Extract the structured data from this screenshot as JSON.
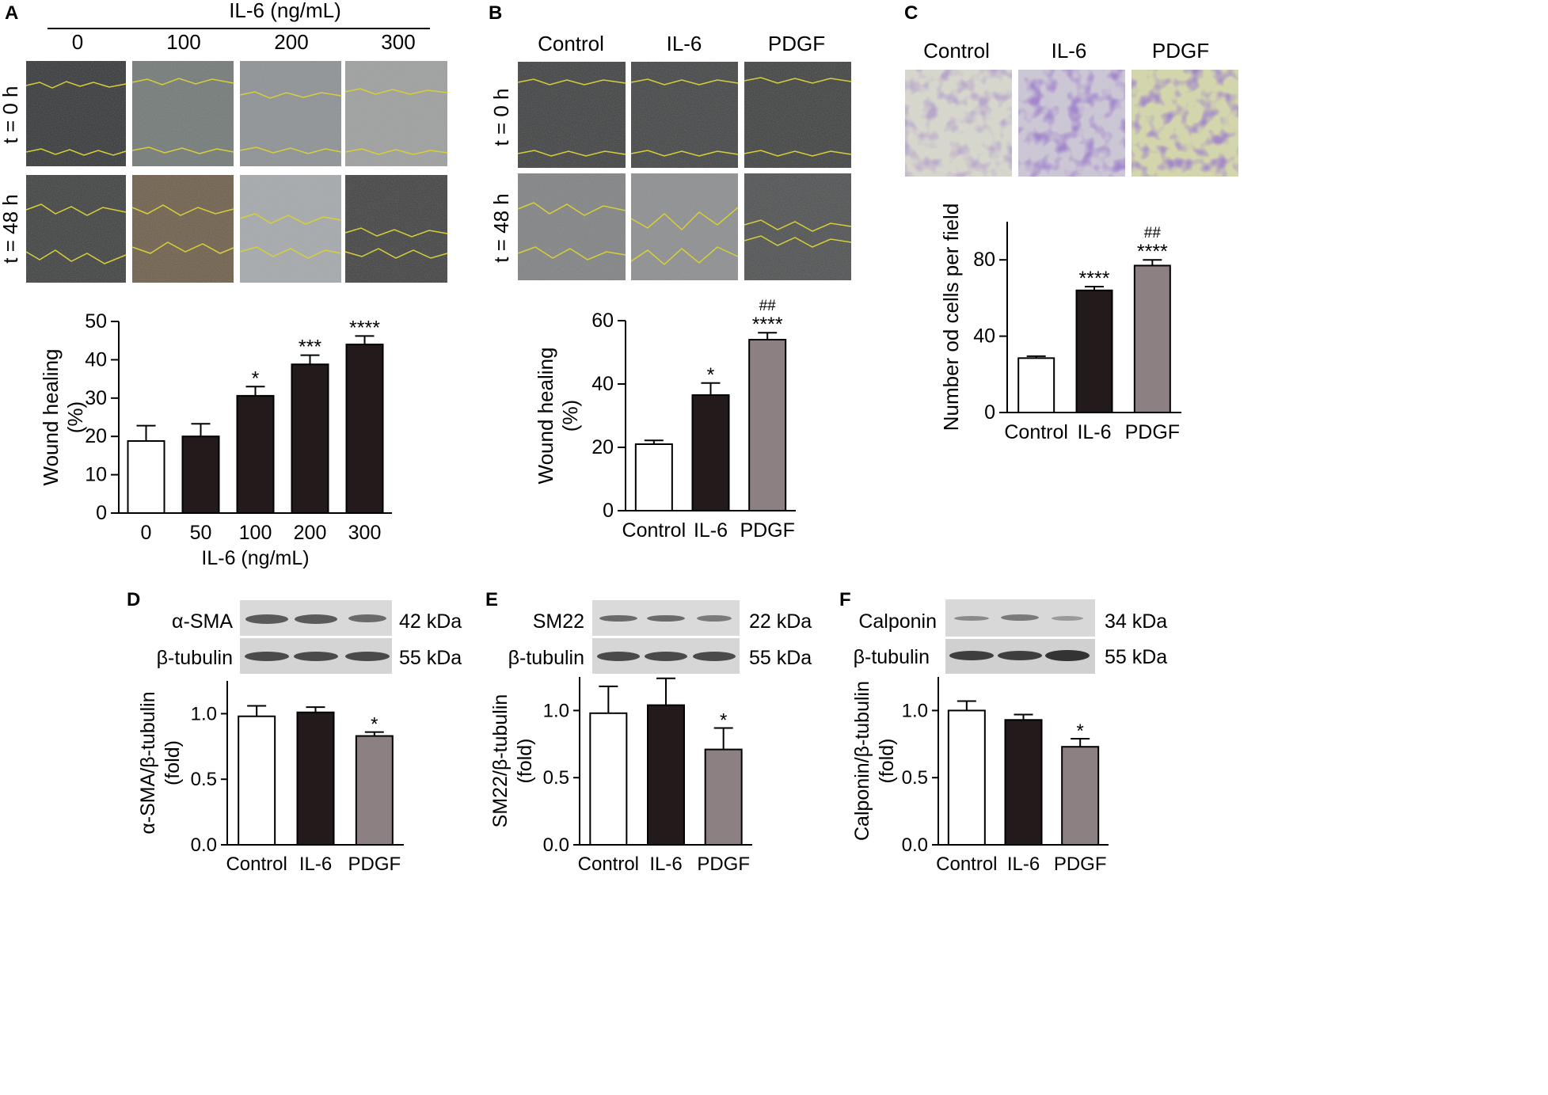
{
  "panels": {
    "A": {
      "letter": "A",
      "header": "IL-6 (ng/mL)",
      "columns": [
        "0",
        "100",
        "200",
        "300"
      ],
      "rows": [
        "t = 0 h",
        "t = 48 h"
      ]
    },
    "B": {
      "letter": "B",
      "columns": [
        "Control",
        "IL-6",
        "PDGF"
      ],
      "rows": [
        "t = 0 h",
        "t = 48 h"
      ]
    },
    "C": {
      "letter": "C",
      "columns": [
        "Control",
        "IL-6",
        "PDGF"
      ]
    },
    "D": {
      "letter": "D",
      "blot_labels": [
        "α-SMA",
        "β-tubulin"
      ],
      "kda": [
        "42 kDa",
        "55 kDa"
      ]
    },
    "E": {
      "letter": "E",
      "blot_labels": [
        "SM22",
        "β-tubulin"
      ],
      "kda": [
        "22 kDa",
        "55 kDa"
      ]
    },
    "F": {
      "letter": "F",
      "blot_labels": [
        "Calponin",
        "β-tubulin"
      ],
      "kda": [
        "34 kDa",
        "55 kDa"
      ]
    }
  },
  "colors": {
    "white": "#ffffff",
    "black": "#231a1c",
    "gray": "#8c8083",
    "yellow_line": "#d6cf3a",
    "violet": "#5a3a9a"
  },
  "chart_data": [
    {
      "id": "A",
      "type": "bar",
      "categories": [
        "0",
        "50",
        "100",
        "200",
        "300"
      ],
      "values": [
        18.8,
        20.0,
        30.6,
        38.8,
        44.0
      ],
      "errors": [
        4.0,
        3.3,
        2.4,
        2.4,
        2.2
      ],
      "fills": [
        "white",
        "black",
        "black",
        "black",
        "black"
      ],
      "annotations": [
        "",
        "",
        "*",
        "***",
        "****"
      ],
      "ylabel": [
        "Wound healing",
        "(%)"
      ],
      "xlabel": "IL-6 (ng/mL)",
      "ylim": [
        0,
        50
      ],
      "yticks": [
        "0",
        "10",
        "20",
        "30",
        "40",
        "50"
      ]
    },
    {
      "id": "B",
      "type": "bar",
      "categories": [
        "Control",
        "IL-6",
        "PDGF"
      ],
      "values": [
        21.0,
        36.5,
        54.0
      ],
      "errors": [
        1.2,
        3.8,
        2.2
      ],
      "fills": [
        "white",
        "black",
        "gray"
      ],
      "annotations": [
        "",
        "*",
        "****"
      ],
      "annotations2": [
        "",
        "",
        "##"
      ],
      "ylabel": [
        "Wound healing",
        "(%)"
      ],
      "xlabel": "",
      "ylim": [
        0,
        60
      ],
      "yticks": [
        "0",
        "20",
        "40",
        "60"
      ]
    },
    {
      "id": "C",
      "type": "bar",
      "categories": [
        "Control",
        "IL-6",
        "PDGF"
      ],
      "values": [
        28.5,
        64.0,
        77.0
      ],
      "errors": [
        1.0,
        2.0,
        3.0
      ],
      "fills": [
        "white",
        "black",
        "gray"
      ],
      "annotations": [
        "",
        "****",
        "****"
      ],
      "annotations2": [
        "",
        "",
        "##"
      ],
      "ylabel": [
        "Number od cells per field"
      ],
      "xlabel": "",
      "ylim": [
        0,
        100
      ],
      "yticks": [
        "0",
        "40",
        "80"
      ]
    },
    {
      "id": "D",
      "type": "bar",
      "categories": [
        "Control",
        "IL-6",
        "PDGF"
      ],
      "values": [
        0.98,
        1.01,
        0.83
      ],
      "errors": [
        0.08,
        0.04,
        0.03
      ],
      "fills": [
        "white",
        "black",
        "gray"
      ],
      "annotations": [
        "",
        "",
        "*"
      ],
      "ylabel": [
        "α-SMA/β-tubulin",
        "(fold)"
      ],
      "xlabel": "",
      "ylim": [
        0,
        1.25
      ],
      "yticks": [
        "0.0",
        "0.5",
        "1.0"
      ]
    },
    {
      "id": "E",
      "type": "bar",
      "categories": [
        "Control",
        "IL-6",
        "PDGF"
      ],
      "values": [
        0.98,
        1.04,
        0.71
      ],
      "errors": [
        0.2,
        0.2,
        0.16
      ],
      "fills": [
        "white",
        "black",
        "gray"
      ],
      "annotations": [
        "",
        "",
        "*"
      ],
      "ylabel": [
        "SM22/β-tubulin",
        "(fold)"
      ],
      "xlabel": "",
      "ylim": [
        0,
        1.25
      ],
      "yticks": [
        "0.0",
        "0.5",
        "1.0"
      ]
    },
    {
      "id": "F",
      "type": "bar",
      "categories": [
        "Control",
        "IL-6",
        "PDGF"
      ],
      "values": [
        1.0,
        0.93,
        0.73
      ],
      "errors": [
        0.07,
        0.04,
        0.06
      ],
      "fills": [
        "white",
        "black",
        "gray"
      ],
      "annotations": [
        "",
        "",
        "*"
      ],
      "ylabel": [
        "Calponin/β-tubulin",
        "(fold)"
      ],
      "xlabel": "",
      "ylim": [
        0,
        1.25
      ],
      "yticks": [
        "0.0",
        "0.5",
        "1.0"
      ]
    }
  ]
}
